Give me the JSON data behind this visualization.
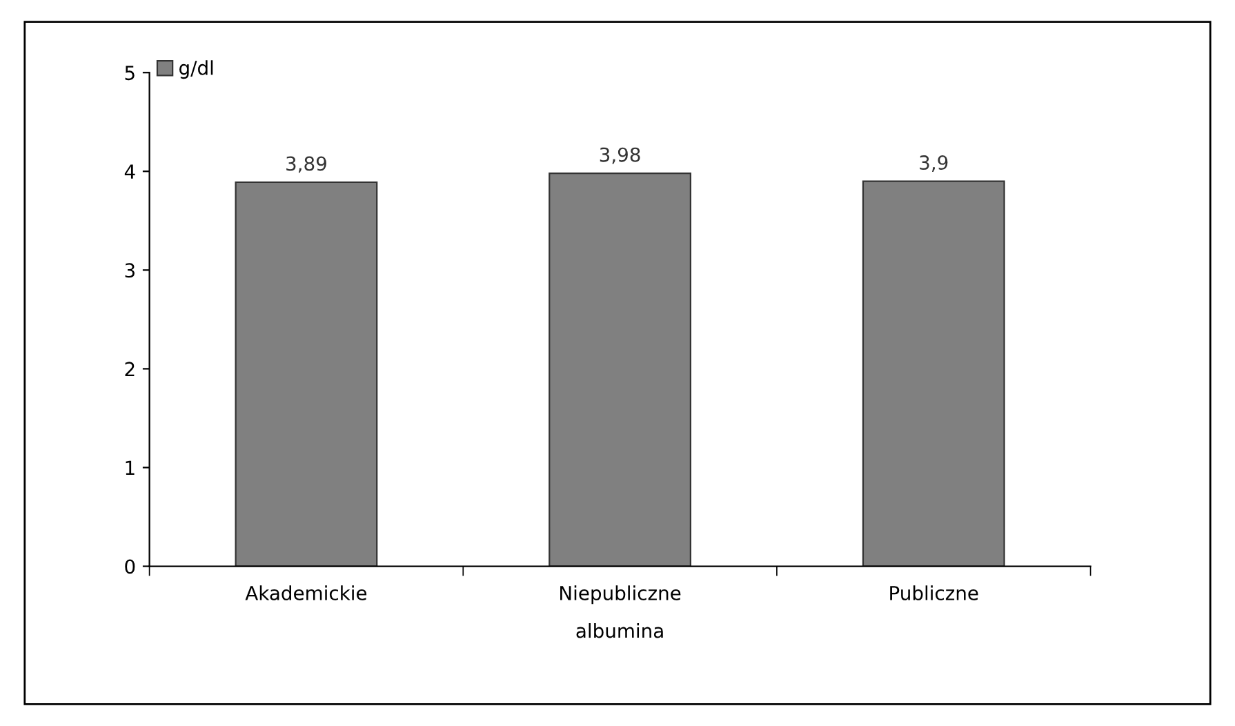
{
  "chart_data": {
    "type": "bar",
    "xlabel": "albumina",
    "categories": [
      "Akademickie",
      "Niepubliczne",
      "Publiczne"
    ],
    "series": [
      {
        "name": "g/dl",
        "color": "#808080",
        "values": [
          3.89,
          3.98,
          3.9
        ],
        "value_labels": [
          "3,89",
          "3,98",
          "3,9"
        ]
      }
    ],
    "ylim": [
      0,
      5
    ],
    "yticks": [
      0,
      1,
      2,
      3,
      4,
      5
    ],
    "legend": "top left",
    "grid": false
  }
}
